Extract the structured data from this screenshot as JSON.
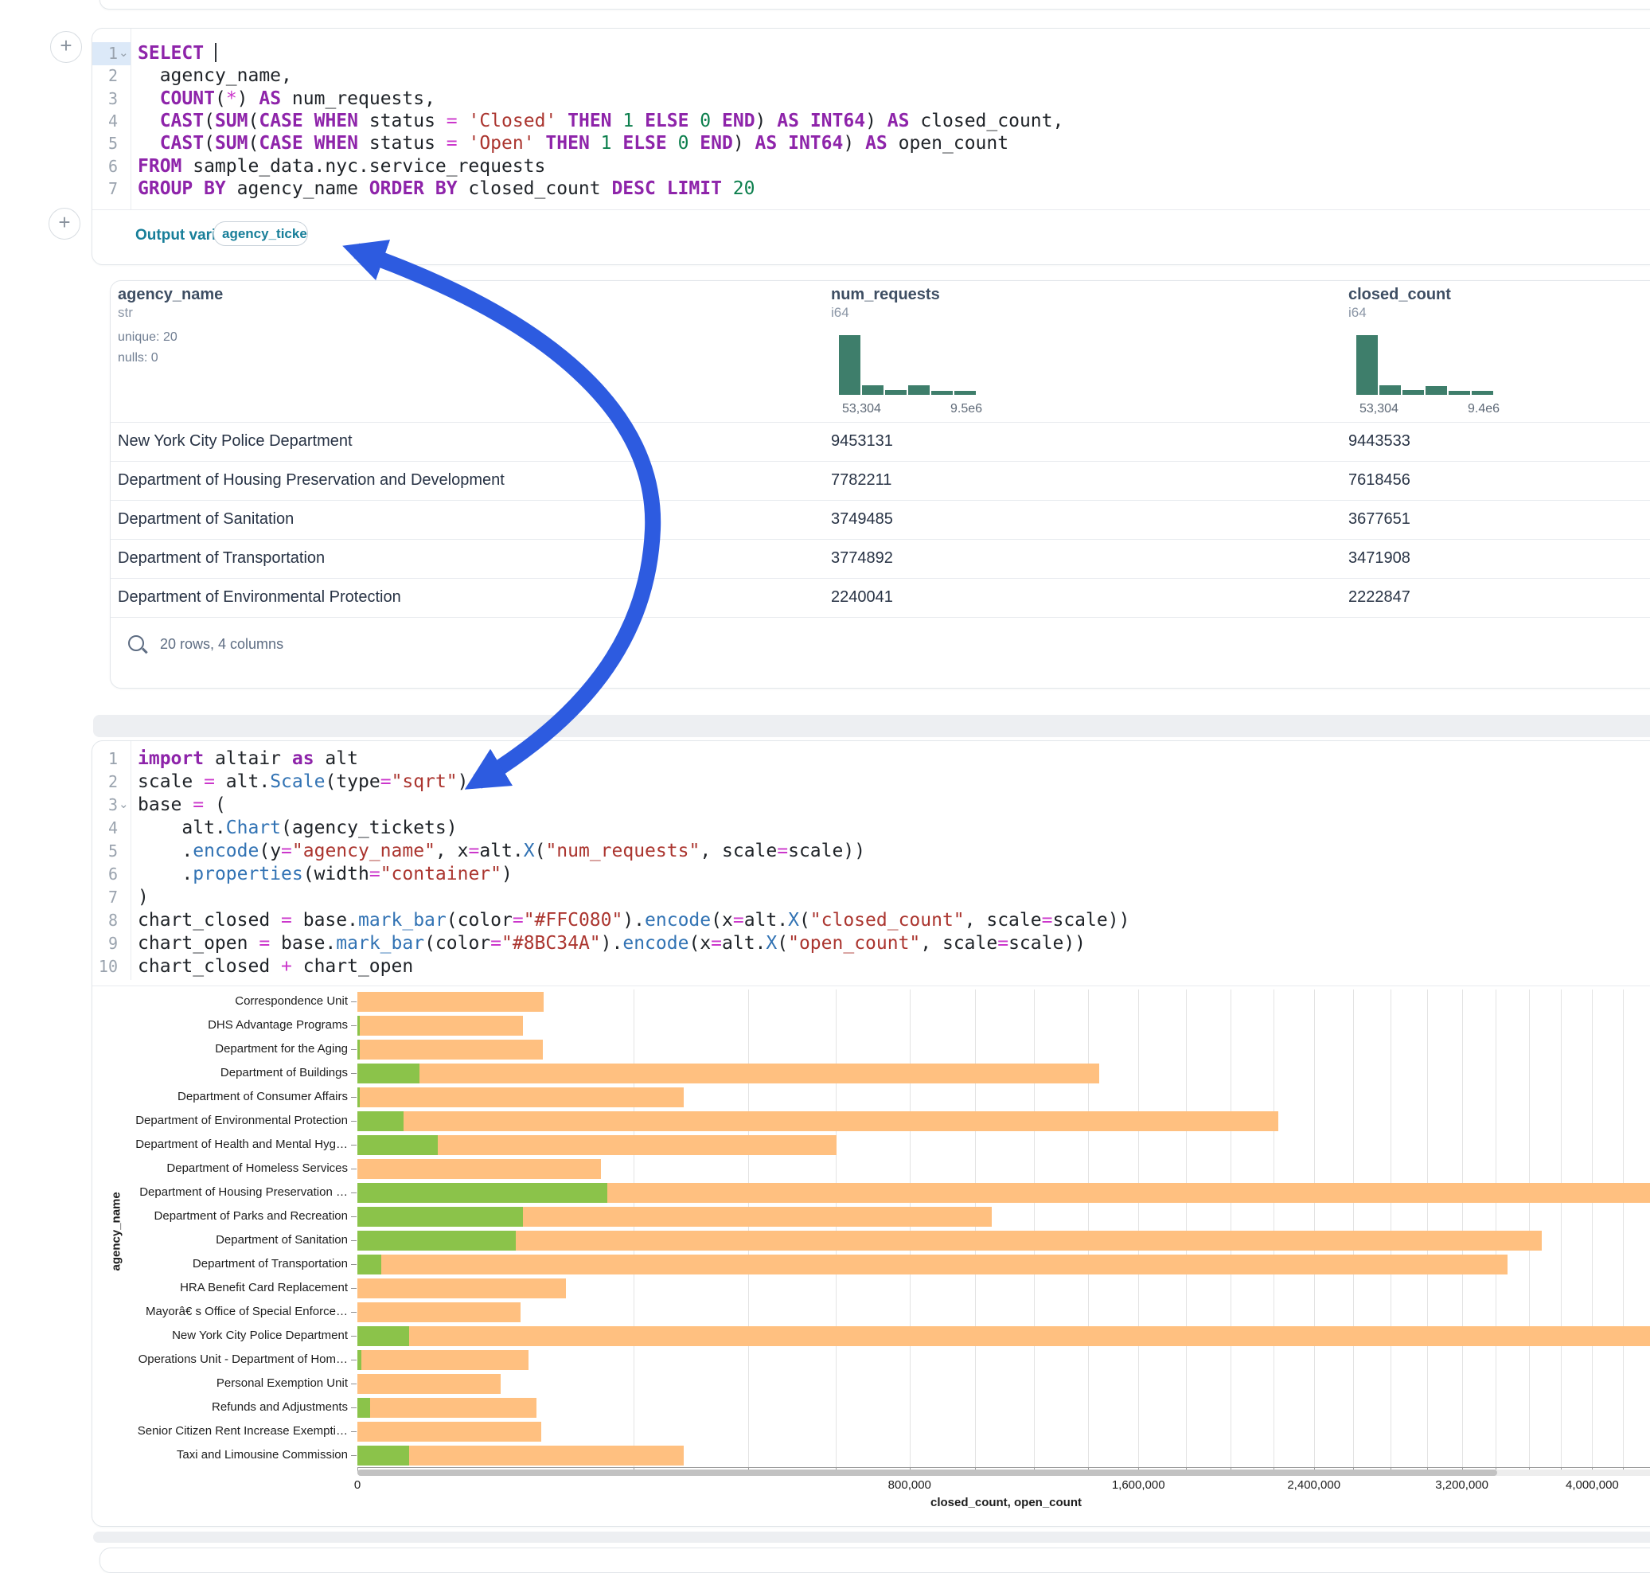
{
  "colors": {
    "accent_teal": "#177e99",
    "hist_green": "#3e7e6b",
    "bar_closed": "#FFC080",
    "bar_open": "#8BC34A",
    "arrow_blue": "#2d5be0",
    "keyword_purple": "#8e24aa",
    "string_red": "#ab352f",
    "number_green": "#0c7f4d",
    "operator_magenta": "#cb36cb",
    "method_blue": "#3273b4"
  },
  "sql_cell": {
    "lines": [
      {
        "n": "1",
        "fold": true,
        "cursor": true,
        "t": [
          [
            "k",
            "SELECT"
          ]
        ]
      },
      {
        "n": "2",
        "fold": false,
        "t": [
          [
            "w",
            "  "
          ],
          [
            "i",
            "agency_name,"
          ]
        ]
      },
      {
        "n": "3",
        "fold": false,
        "t": [
          [
            "w",
            "  "
          ],
          [
            "k",
            "COUNT"
          ],
          [
            "p",
            "("
          ],
          [
            "o",
            "*"
          ],
          [
            "p",
            ") "
          ],
          [
            "k",
            "AS"
          ],
          [
            "i",
            " num_requests,"
          ]
        ]
      },
      {
        "n": "4",
        "fold": false,
        "t": [
          [
            "w",
            "  "
          ],
          [
            "k",
            "CAST"
          ],
          [
            "p",
            "("
          ],
          [
            "k",
            "SUM"
          ],
          [
            "p",
            "("
          ],
          [
            "k",
            "CASE"
          ],
          [
            "p",
            " "
          ],
          [
            "k",
            "WHEN"
          ],
          [
            "i",
            " status "
          ],
          [
            "o",
            "="
          ],
          [
            "s",
            " 'Closed' "
          ],
          [
            "k",
            "THEN"
          ],
          [
            "n",
            " 1 "
          ],
          [
            "k",
            "ELSE"
          ],
          [
            "n",
            " 0 "
          ],
          [
            "k",
            "END"
          ],
          [
            "p",
            ") "
          ],
          [
            "k",
            "AS"
          ],
          [
            "p",
            " "
          ],
          [
            "k",
            "INT64"
          ],
          [
            "p",
            ") "
          ],
          [
            "k",
            "AS"
          ],
          [
            "i",
            " closed_count,"
          ]
        ]
      },
      {
        "n": "5",
        "fold": false,
        "t": [
          [
            "w",
            "  "
          ],
          [
            "k",
            "CAST"
          ],
          [
            "p",
            "("
          ],
          [
            "k",
            "SUM"
          ],
          [
            "p",
            "("
          ],
          [
            "k",
            "CASE"
          ],
          [
            "p",
            " "
          ],
          [
            "k",
            "WHEN"
          ],
          [
            "i",
            " status "
          ],
          [
            "o",
            "="
          ],
          [
            "s",
            " 'Open' "
          ],
          [
            "k",
            "THEN"
          ],
          [
            "n",
            " 1 "
          ],
          [
            "k",
            "ELSE"
          ],
          [
            "n",
            " 0 "
          ],
          [
            "k",
            "END"
          ],
          [
            "p",
            ") "
          ],
          [
            "k",
            "AS"
          ],
          [
            "p",
            " "
          ],
          [
            "k",
            "INT64"
          ],
          [
            "p",
            ") "
          ],
          [
            "k",
            "AS"
          ],
          [
            "i",
            " open_count"
          ]
        ]
      },
      {
        "n": "6",
        "fold": false,
        "t": [
          [
            "k",
            "FROM"
          ],
          [
            "i",
            " sample_data.nyc.service_requests"
          ]
        ]
      },
      {
        "n": "7",
        "fold": false,
        "t": [
          [
            "k",
            "GROUP BY"
          ],
          [
            "i",
            " agency_name "
          ],
          [
            "k",
            "ORDER BY"
          ],
          [
            "i",
            " closed_count "
          ],
          [
            "k",
            "DESC"
          ],
          [
            "p",
            " "
          ],
          [
            "k",
            "LIMIT"
          ],
          [
            "n",
            " 20"
          ]
        ]
      }
    ]
  },
  "output_bar": {
    "label": "Output variable:",
    "pill": "agency_tickets"
  },
  "table": {
    "columns": [
      {
        "name": "agency_name",
        "type": "str",
        "meta": [
          "unique: 20",
          "nulls: 0"
        ]
      },
      {
        "name": "num_requests",
        "type": "i64",
        "hist": [
          1,
          0.16,
          0.08,
          0.16,
          0.07,
          0.06
        ],
        "min_label": "53,304",
        "max_label": "9.5e6"
      },
      {
        "name": "closed_count",
        "type": "i64",
        "hist": [
          1,
          0.16,
          0.08,
          0.15,
          0.07,
          0.07
        ],
        "min_label": "53,304",
        "max_label": "9.4e6"
      }
    ],
    "rows": [
      {
        "agency_name": "New York City Police Department",
        "num_requests": "9453131",
        "closed_count": "9443533"
      },
      {
        "agency_name": "Department of Housing Preservation and Development",
        "num_requests": "7782211",
        "closed_count": "7618456"
      },
      {
        "agency_name": "Department of Sanitation",
        "num_requests": "3749485",
        "closed_count": "3677651"
      },
      {
        "agency_name": "Department of Transportation",
        "num_requests": "3774892",
        "closed_count": "3471908"
      },
      {
        "agency_name": "Department of Environmental Protection",
        "num_requests": "2240041",
        "closed_count": "2222847"
      }
    ],
    "footer": "20 rows, 4 columns"
  },
  "python_cell": {
    "lines": [
      {
        "n": "1",
        "fold": false,
        "t": [
          [
            "k",
            "import"
          ],
          [
            "i",
            " altair "
          ],
          [
            "k",
            "as"
          ],
          [
            "i",
            " alt"
          ]
        ]
      },
      {
        "n": "2",
        "fold": false,
        "t": [
          [
            "i",
            "scale "
          ],
          [
            "o",
            "="
          ],
          [
            "i",
            " alt."
          ],
          [
            "m",
            "Scale"
          ],
          [
            "p",
            "(type"
          ],
          [
            "o",
            "="
          ],
          [
            "s",
            "\"sqrt\""
          ],
          [
            "p",
            ")"
          ]
        ]
      },
      {
        "n": "3",
        "fold": true,
        "t": [
          [
            "i",
            "base "
          ],
          [
            "o",
            "="
          ],
          [
            "p",
            " ("
          ]
        ]
      },
      {
        "n": "4",
        "fold": false,
        "t": [
          [
            "w",
            "    "
          ],
          [
            "i",
            "alt."
          ],
          [
            "m",
            "Chart"
          ],
          [
            "p",
            "(agency_tickets)"
          ]
        ]
      },
      {
        "n": "5",
        "fold": false,
        "t": [
          [
            "w",
            "    "
          ],
          [
            "p",
            "."
          ],
          [
            "m",
            "encode"
          ],
          [
            "p",
            "(y"
          ],
          [
            "o",
            "="
          ],
          [
            "s",
            "\"agency_name\""
          ],
          [
            "p",
            ", x"
          ],
          [
            "o",
            "="
          ],
          [
            "i",
            "alt."
          ],
          [
            "m",
            "X"
          ],
          [
            "p",
            "("
          ],
          [
            "s",
            "\"num_requests\""
          ],
          [
            "p",
            ", scale"
          ],
          [
            "o",
            "="
          ],
          [
            "i",
            "scale"
          ],
          [
            "p",
            "))"
          ]
        ]
      },
      {
        "n": "6",
        "fold": false,
        "t": [
          [
            "w",
            "    "
          ],
          [
            "p",
            "."
          ],
          [
            "m",
            "properties"
          ],
          [
            "p",
            "(width"
          ],
          [
            "o",
            "="
          ],
          [
            "s",
            "\"container\""
          ],
          [
            "p",
            ")"
          ]
        ]
      },
      {
        "n": "7",
        "fold": false,
        "t": [
          [
            "p",
            ")"
          ]
        ]
      },
      {
        "n": "8",
        "fold": false,
        "t": [
          [
            "i",
            "chart_closed "
          ],
          [
            "o",
            "="
          ],
          [
            "i",
            " base."
          ],
          [
            "m",
            "mark_bar"
          ],
          [
            "p",
            "(color"
          ],
          [
            "o",
            "="
          ],
          [
            "s",
            "\"#FFC080\""
          ],
          [
            "p",
            ")."
          ],
          [
            "m",
            "encode"
          ],
          [
            "p",
            "(x"
          ],
          [
            "o",
            "="
          ],
          [
            "i",
            "alt."
          ],
          [
            "m",
            "X"
          ],
          [
            "p",
            "("
          ],
          [
            "s",
            "\"closed_count\""
          ],
          [
            "p",
            ", scale"
          ],
          [
            "o",
            "="
          ],
          [
            "i",
            "scale"
          ],
          [
            "p",
            "))"
          ]
        ]
      },
      {
        "n": "9",
        "fold": false,
        "t": [
          [
            "i",
            "chart_open "
          ],
          [
            "o",
            "="
          ],
          [
            "i",
            " base."
          ],
          [
            "m",
            "mark_bar"
          ],
          [
            "p",
            "(color"
          ],
          [
            "o",
            "="
          ],
          [
            "s",
            "\"#8BC34A\""
          ],
          [
            "p",
            ")."
          ],
          [
            "m",
            "encode"
          ],
          [
            "p",
            "(x"
          ],
          [
            "o",
            "="
          ],
          [
            "i",
            "alt."
          ],
          [
            "m",
            "X"
          ],
          [
            "p",
            "("
          ],
          [
            "s",
            "\"open_count\""
          ],
          [
            "p",
            ", scale"
          ],
          [
            "o",
            "="
          ],
          [
            "i",
            "scale"
          ],
          [
            "p",
            "))"
          ]
        ]
      },
      {
        "n": "10",
        "fold": false,
        "t": [
          [
            "i",
            "chart_closed "
          ],
          [
            "o",
            "+"
          ],
          [
            "i",
            " chart_open"
          ]
        ]
      }
    ]
  },
  "chart_data": {
    "type": "bar",
    "orientation": "horizontal",
    "x_scale": "sqrt",
    "title": "",
    "xlabel": "closed_count, open_count",
    "ylabel": "agency_name",
    "categories": [
      "Correspondence Unit",
      "DHS Advantage Programs",
      "Department for the Aging",
      "Department of Buildings",
      "Department of Consumer Affairs",
      "Department of Environmental Protection",
      "Department of Health and Mental Hyg…",
      "Department of Homeless Services",
      "Department of Housing Preservation …",
      "Department of Parks and Recreation",
      "Department of Sanitation",
      "Department of Transportation",
      "HRA Benefit Card Replacement",
      "Mayorâ€ s Office of Special Enforce…",
      "New York City Police Department",
      "Operations Unit - Department of Hom…",
      "Personal Exemption Unit",
      "Refunds and Adjustments",
      "Senior Citizen Rent Increase Exempti…",
      "Taxi and Limousine Commission"
    ],
    "series": [
      {
        "name": "closed_count",
        "color": "#FFC080",
        "values": [
          91000,
          72000,
          90000,
          1443000,
          280000,
          2222847,
          603000,
          156000,
          7618456,
          1055000,
          3677651,
          3471908,
          114000,
          70000,
          9443533,
          77000,
          54000,
          84000,
          89000,
          280000
        ]
      },
      {
        "name": "open_count",
        "color": "#8BC34A",
        "values": [
          0,
          20,
          20,
          10000,
          20,
          5500,
          17000,
          0,
          164000,
          72000,
          66000,
          1500,
          0,
          0,
          7000,
          50,
          0,
          400,
          0,
          7000
        ]
      }
    ],
    "x_ticks": [
      0,
      800000,
      1600000,
      2400000,
      3200000,
      4000000
    ],
    "gridline_step": 200000,
    "x_max_visible": 4400000,
    "grid": true,
    "legend_position": "none"
  }
}
